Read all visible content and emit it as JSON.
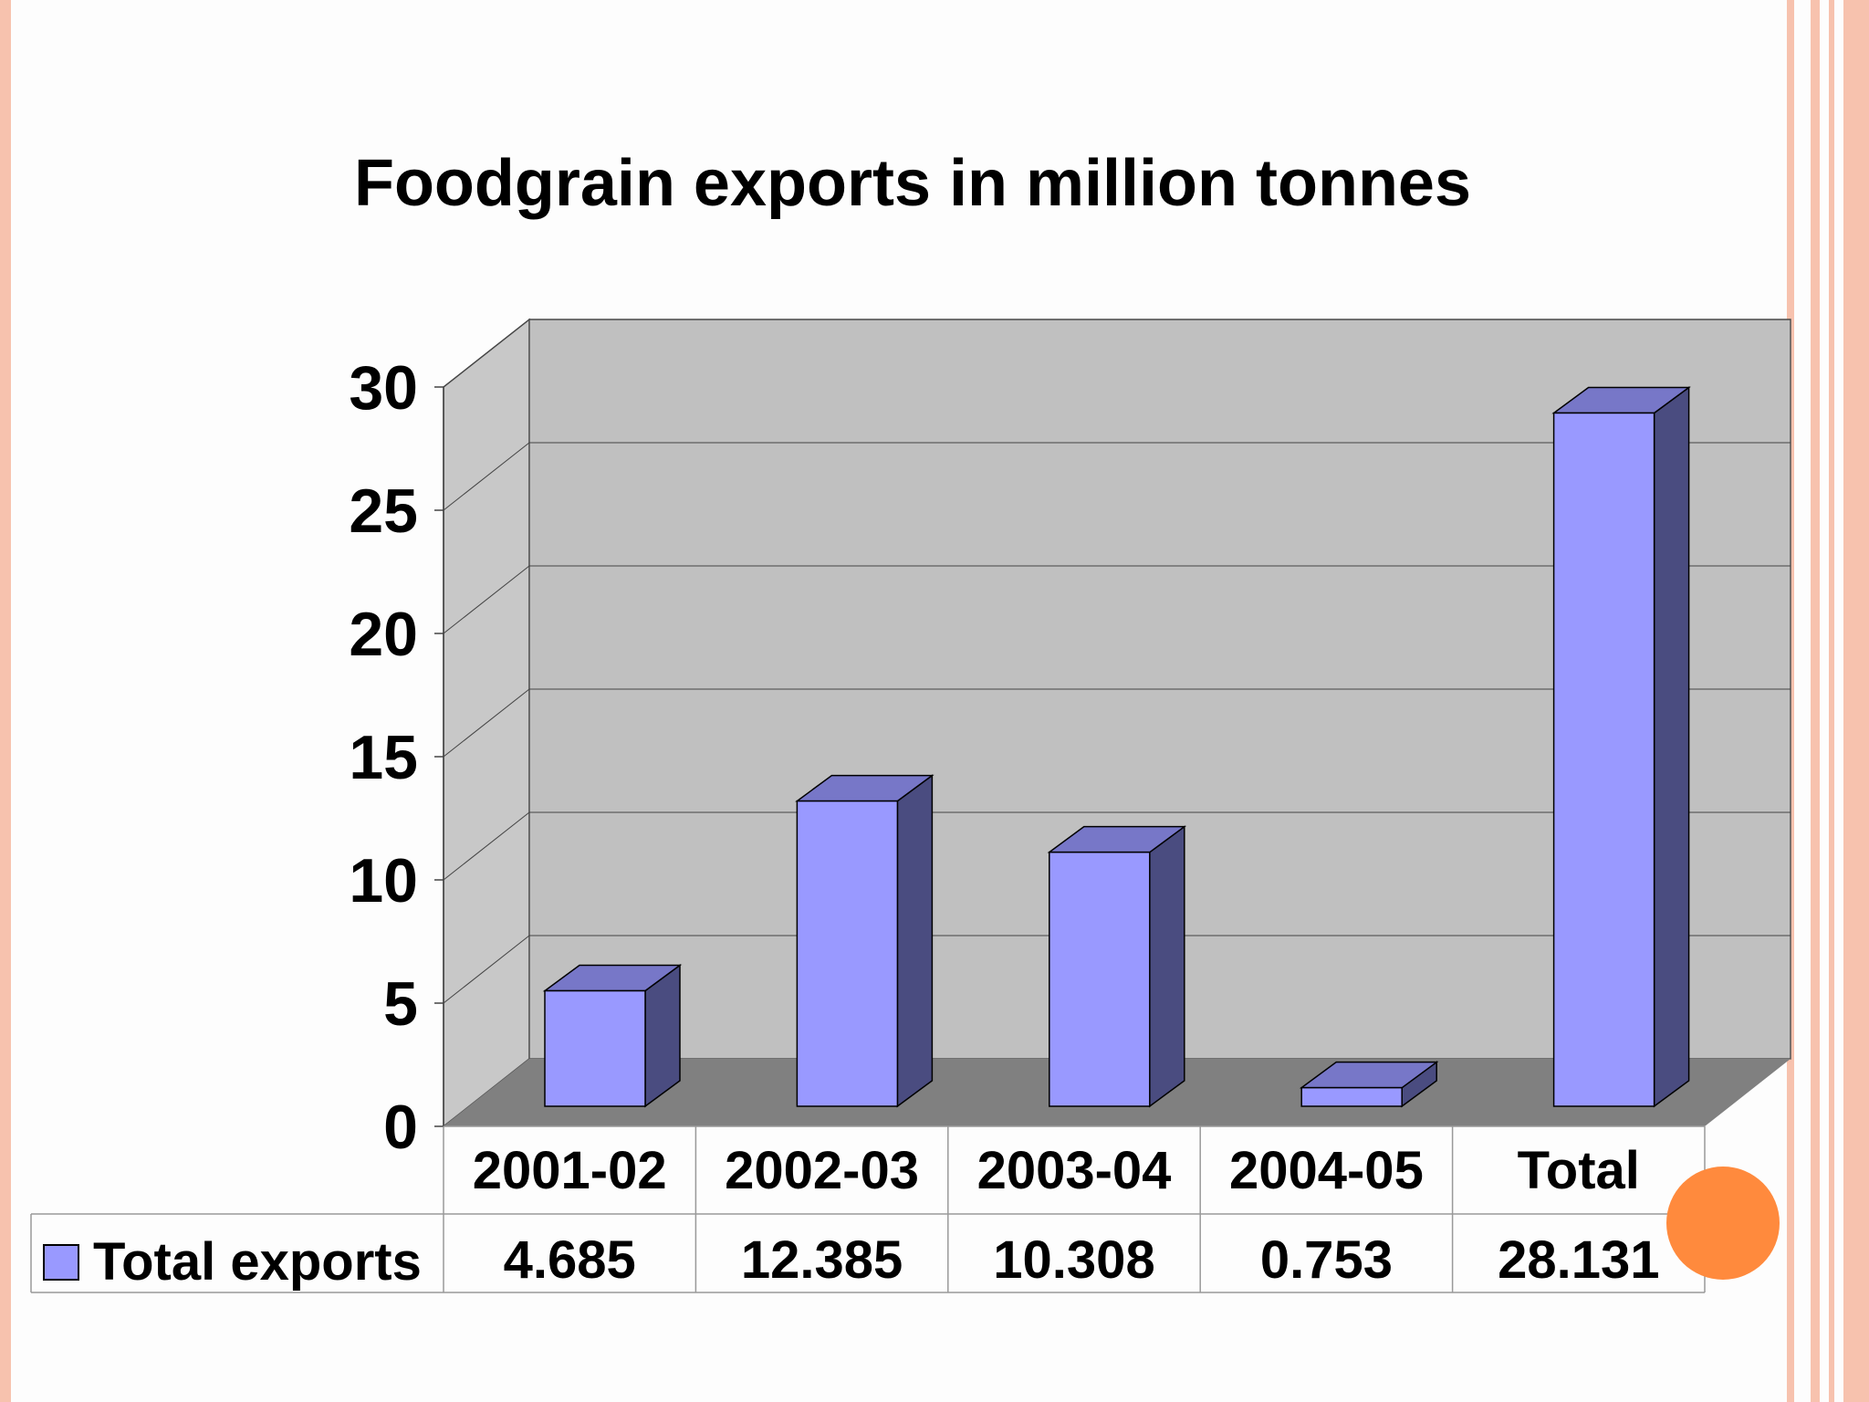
{
  "chart_data": {
    "type": "bar",
    "title": "Foodgrain exports in million tonnes",
    "categories": [
      "2001-02",
      "2002-03",
      "2003-04",
      "2004-05",
      "Total"
    ],
    "series": [
      {
        "name": "Total exports",
        "values": [
          4.685,
          12.385,
          10.308,
          0.753,
          28.131
        ]
      }
    ],
    "value_labels": [
      "4.685",
      "12.385",
      "10.308",
      "0.753",
      "28.131"
    ],
    "yticks": [
      "0",
      "5",
      "10",
      "15",
      "20",
      "25",
      "30"
    ],
    "ylim": [
      0,
      30
    ],
    "xlabel": "",
    "ylabel": "",
    "grid": true,
    "legend": "data-table-left",
    "three_d": true
  },
  "colors": {
    "bar_front": "#9999ff",
    "bar_top": "#7777c8",
    "bar_side": "#4a4c80",
    "back_wall": "#c0c0c0",
    "side_wall": "#c8c8c8",
    "floor": "#808080",
    "accent_circle": "#ff8a3d",
    "border_stripe": "#f7c2ae"
  }
}
